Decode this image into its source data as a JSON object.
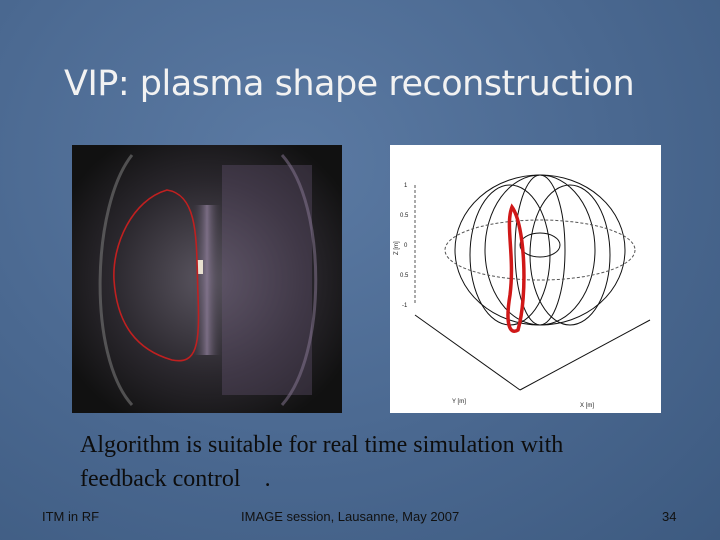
{
  "slide": {
    "title": "VIP: plasma shape reconstruction",
    "body_lines": [
      "Algorithm is suitable for real time simulation with",
      "feedback control    ."
    ],
    "figure": {
      "z_ticks": [
        "1",
        "0.5",
        "0",
        "0.5",
        "-1"
      ],
      "z_label": "Z [m]",
      "y_label": "Y [m]",
      "x_label": "X [m]"
    },
    "footer": {
      "left": "ITM in RF",
      "center": "IMAGE session, Lausanne, May 2007",
      "page": "34"
    }
  }
}
